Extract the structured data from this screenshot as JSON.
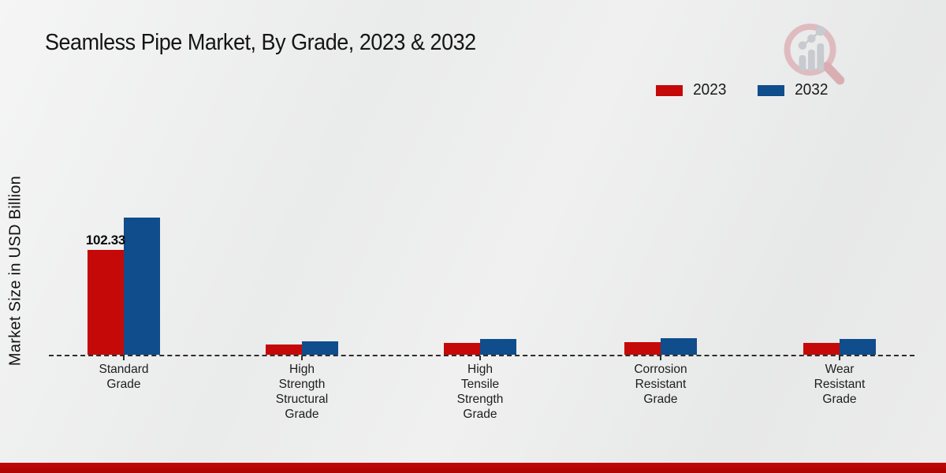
{
  "title": "Seamless Pipe Market, By Grade, 2023 & 2032",
  "logo_name": "market-research-magnifier-logo",
  "chart_data": {
    "type": "bar",
    "title": "Seamless Pipe Market, By Grade, 2023 & 2032",
    "xlabel": "",
    "ylabel": "Market Size in USD Billion",
    "categories": [
      "Standard\nGrade",
      "High\nStrength\nStructural\nGrade",
      "High\nTensile\nStrength\nGrade",
      "Corrosion\nResistant\nGrade",
      "Wear\nResistant\nGrade"
    ],
    "series": [
      {
        "name": "2023",
        "color": "#c50909",
        "values": [
          102.33,
          10.2,
          11.6,
          12.6,
          11.9
        ]
      },
      {
        "name": "2032",
        "color": "#0f4d8c",
        "values": [
          133.5,
          13.3,
          15.6,
          15.8,
          15.0
        ]
      }
    ],
    "annotations": [
      {
        "text": "102.33",
        "category_index": 0,
        "series_index": 0
      }
    ],
    "ylim": [
      0,
      140
    ],
    "grid": false,
    "legend_position": "top-right",
    "baseline_style": "dashed"
  },
  "colors": {
    "bar_2023": "#c50909",
    "bar_2032": "#0f4d8c",
    "bottom_band": "#b50606",
    "background": "#ececec"
  }
}
